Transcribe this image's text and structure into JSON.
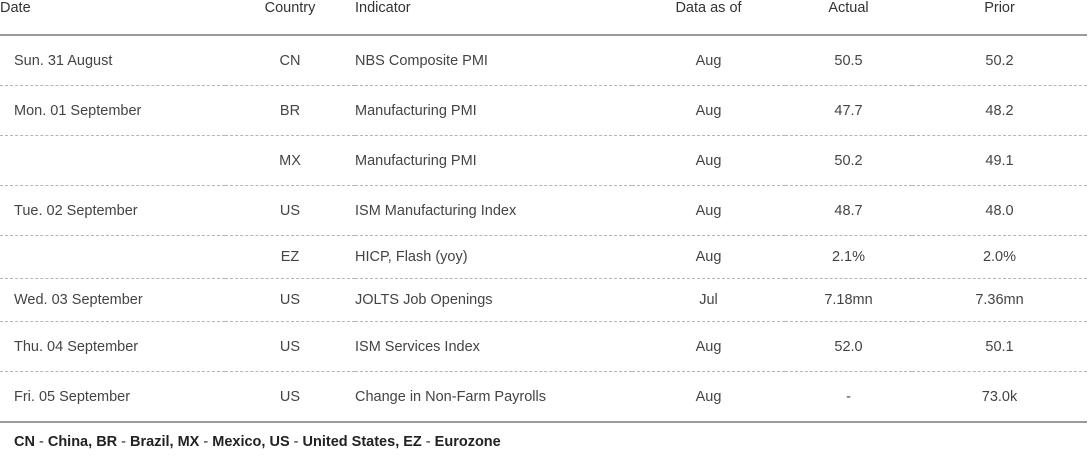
{
  "headers": {
    "date": "Date",
    "country": "Country",
    "indicator": "Indicator",
    "data_as_of": "Data as of",
    "actual": "Actual",
    "prior": "Prior"
  },
  "rows": [
    {
      "date": "Sun. 31 August",
      "country": "CN",
      "indicator": "NBS Composite PMI",
      "data_as_of": "Aug",
      "actual": "50.5",
      "prior": "50.2"
    },
    {
      "date": "Mon. 01 September",
      "country": "BR",
      "indicator": "Manufacturing PMI",
      "data_as_of": "Aug",
      "actual": "47.7",
      "prior": "48.2"
    },
    {
      "date": "",
      "country": "MX",
      "indicator": "Manufacturing PMI",
      "data_as_of": "Aug",
      "actual": "50.2",
      "prior": "49.1"
    },
    {
      "date": "Tue. 02 September",
      "country": "US",
      "indicator": "ISM Manufacturing Index",
      "data_as_of": "Aug",
      "actual": "48.7",
      "prior": "48.0"
    },
    {
      "date": "",
      "country": "EZ",
      "indicator": "HICP, Flash (yoy)",
      "data_as_of": "Aug",
      "actual": "2.1%",
      "prior": "2.0%"
    },
    {
      "date": "Wed. 03 September",
      "country": "US",
      "indicator": "JOLTS Job Openings",
      "data_as_of": "Jul",
      "actual": "7.18mn",
      "prior": "7.36mn"
    },
    {
      "date": "Thu. 04 September",
      "country": "US",
      "indicator": "ISM Services Index",
      "data_as_of": "Aug",
      "actual": "52.0",
      "prior": "50.1"
    },
    {
      "date": "Fri. 05 September",
      "country": "US",
      "indicator": "Change in Non-Farm Payrolls",
      "data_as_of": "Aug",
      "actual": "-",
      "prior": "73.0k"
    }
  ],
  "footnote": {
    "items": [
      {
        "code": "CN",
        "name": "China"
      },
      {
        "code": "BR",
        "name": "Brazil"
      },
      {
        "code": "MX",
        "name": "Mexico"
      },
      {
        "code": "US",
        "name": "United States"
      },
      {
        "code": "EZ",
        "name": "Eurozone"
      }
    ]
  }
}
